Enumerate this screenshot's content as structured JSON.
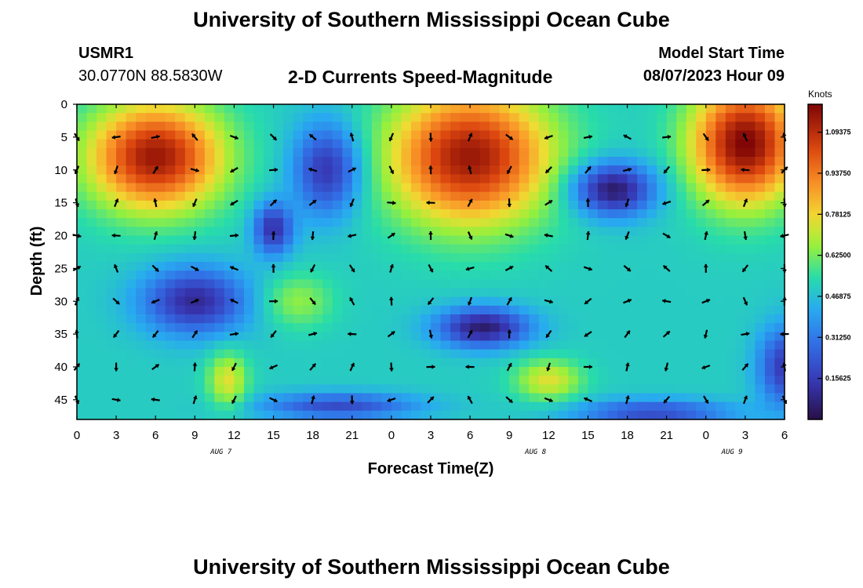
{
  "page": {
    "title_top": "University of Southern Mississippi Ocean Cube",
    "title_bottom": "University of Southern Mississippi Ocean Cube",
    "station_id": "USMR1",
    "station_coords": "30.0770N  88.5830W",
    "plot_title": "2-D Currents Speed-Magnitude",
    "model_start_label": "Model Start Time",
    "model_start_value": "08/07/2023 Hour 09"
  },
  "chart_data": {
    "type": "heatmap",
    "title": "2-D Currents Speed-Magnitude",
    "xlabel": "Forecast Time(Z)",
    "ylabel": "Depth (ft)",
    "colorbar_label": "Knots",
    "x_tick_labels": [
      "0",
      "3",
      "6",
      "9",
      "12",
      "15",
      "18",
      "21",
      "0",
      "3",
      "6",
      "9",
      "12",
      "15",
      "18",
      "21",
      "0",
      "3",
      "6"
    ],
    "x_range_hours": [
      0,
      54
    ],
    "date_labels": [
      {
        "text": "AUG 7",
        "hour": 11
      },
      {
        "text": "AUG 8",
        "hour": 35
      },
      {
        "text": "AUG 9",
        "hour": 50
      }
    ],
    "y_ticks": [
      0,
      5,
      10,
      15,
      20,
      25,
      30,
      35,
      40,
      45
    ],
    "ylim": [
      48,
      0
    ],
    "colorbar_ticks": [
      "1.09375",
      "0.93750",
      "0.78125",
      "0.62500",
      "0.46875",
      "0.31250",
      "0.15625"
    ],
    "color_range": [
      0,
      1.2
    ],
    "arrow_x_hours": [
      0,
      3,
      6,
      9,
      12,
      15,
      18,
      21,
      24,
      27,
      30,
      33,
      36,
      39,
      42,
      45,
      48,
      51,
      54
    ],
    "arrow_depths": [
      5,
      10,
      15,
      20,
      25,
      30,
      35,
      40,
      45
    ],
    "speed_features": [
      {
        "hour": 6,
        "depth": 8,
        "speed": 1.15,
        "sx": 5,
        "sy": 8
      },
      {
        "hour": 30,
        "depth": 8,
        "speed": 1.15,
        "sx": 6,
        "sy": 10
      },
      {
        "hour": 51,
        "depth": 6,
        "speed": 1.2,
        "sx": 4,
        "sy": 9
      },
      {
        "hour": 19,
        "depth": 10,
        "speed": 0.15,
        "sx": 2.5,
        "sy": 7
      },
      {
        "hour": 15,
        "depth": 19,
        "speed": 0.12,
        "sx": 1.5,
        "sy": 4
      },
      {
        "hour": 9,
        "depth": 30,
        "speed": 0.1,
        "sx": 4,
        "sy": 5
      },
      {
        "hour": 31,
        "depth": 34,
        "speed": 0.05,
        "sx": 3.5,
        "sy": 3
      },
      {
        "hour": 41,
        "depth": 13,
        "speed": 0.05,
        "sx": 3,
        "sy": 4
      },
      {
        "hour": 20,
        "depth": 46,
        "speed": 0.2,
        "sx": 6,
        "sy": 2
      },
      {
        "hour": 44,
        "depth": 47,
        "speed": 0.2,
        "sx": 6,
        "sy": 2
      },
      {
        "hour": 54,
        "depth": 40,
        "speed": 0.15,
        "sx": 2,
        "sy": 6
      },
      {
        "hour": 11.5,
        "depth": 42,
        "speed": 0.75,
        "sx": 1.5,
        "sy": 4
      },
      {
        "hour": 36,
        "depth": 42,
        "speed": 0.75,
        "sx": 2.5,
        "sy": 3
      },
      {
        "hour": 17,
        "depth": 30,
        "speed": 0.65,
        "sx": 2.5,
        "sy": 4
      }
    ],
    "background_speed": 0.5
  }
}
